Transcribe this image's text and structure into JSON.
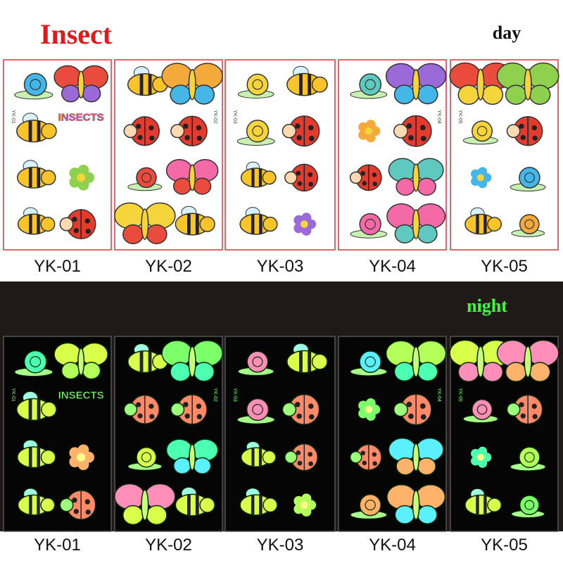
{
  "header": {
    "title": "Insect",
    "day_label": "day",
    "night_label": "night"
  },
  "sheets": [
    {
      "label": "YK-01"
    },
    {
      "label": "YK-02"
    },
    {
      "label": "YK-03"
    },
    {
      "label": "YK-04"
    },
    {
      "label": "YK-05"
    }
  ],
  "sheet_text": "INSECTS"
}
